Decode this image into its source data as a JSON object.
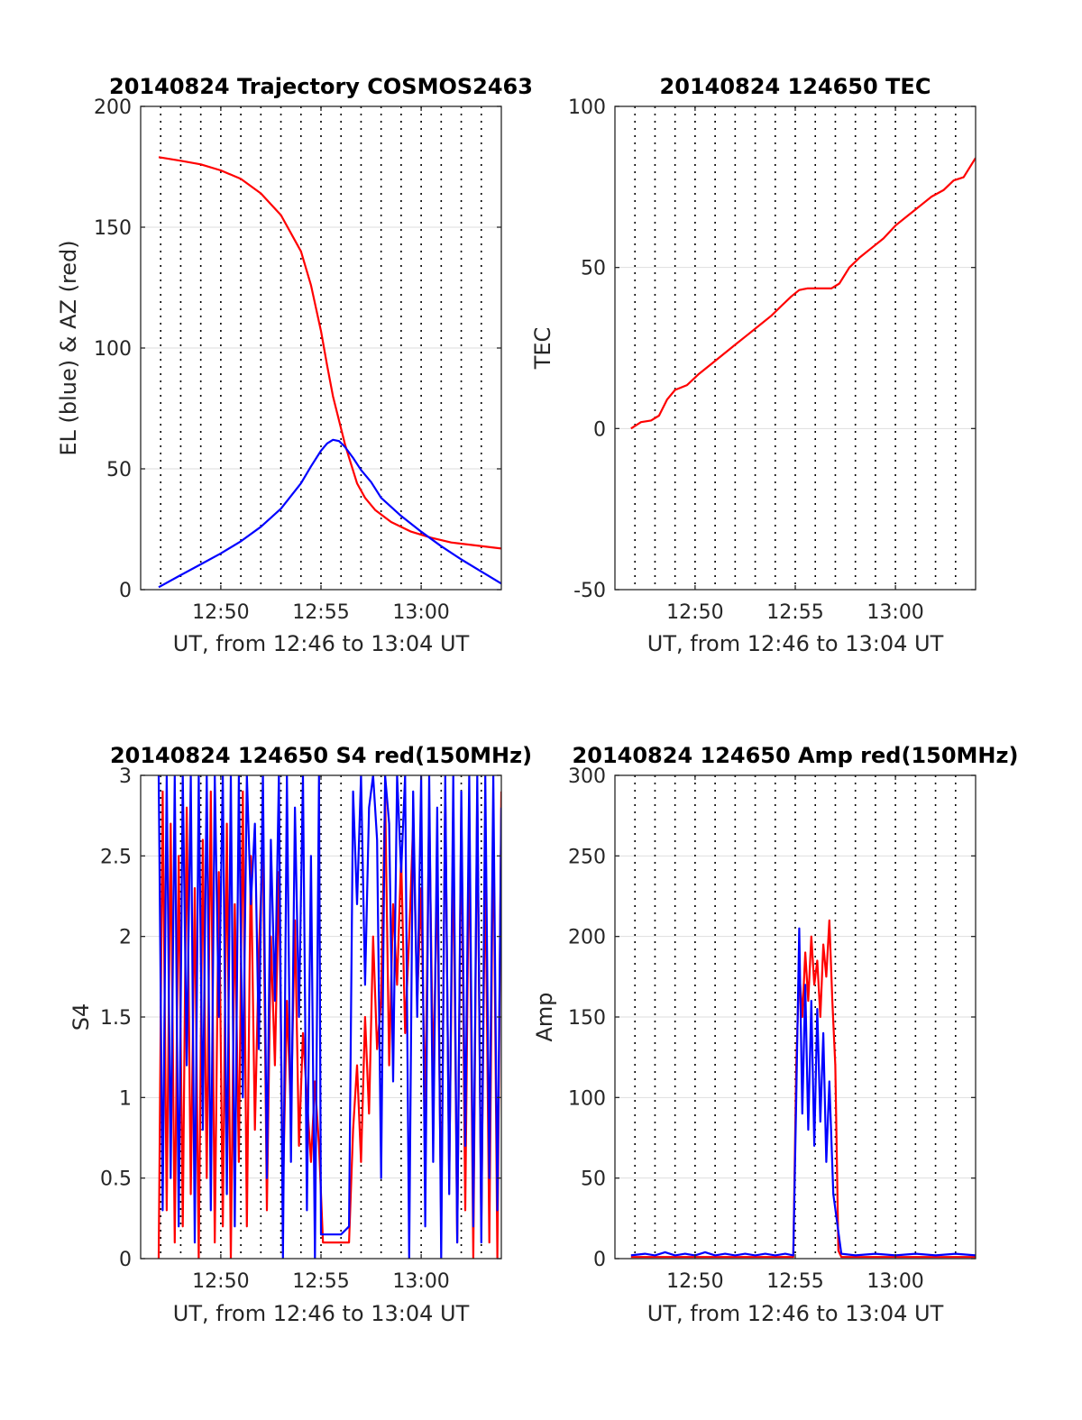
{
  "chart_data": [
    {
      "type": "line",
      "title": "20140824 Trajectory COSMOS2463",
      "xlabel": "UT, from 12:46 to 13:04 UT",
      "ylabel": "EL (blue) & AZ (red)",
      "xlim": [
        766,
        784
      ],
      "ylim": [
        0,
        200
      ],
      "xticks": [
        770,
        775,
        780
      ],
      "xtick_labels": [
        "12:50",
        "12:55",
        "13:00"
      ],
      "yticks": [
        0,
        50,
        100,
        150,
        200
      ],
      "ytick_labels": [
        "0",
        "50",
        "100",
        "150",
        "200"
      ],
      "grid": true,
      "series": [
        {
          "color": "#ff0000",
          "x": [
            766.9,
            768,
            769,
            770,
            771,
            772,
            773,
            774,
            774.5,
            775,
            775.3,
            775.6,
            775.9,
            776.2,
            776.5,
            776.8,
            777.2,
            777.7,
            778.5,
            779.5,
            780.5,
            781.5,
            782.5,
            784
          ],
          "values": [
            179,
            177.5,
            176,
            173.5,
            170,
            164,
            155,
            140,
            126,
            107,
            93,
            80,
            70,
            60,
            52,
            44,
            38,
            33,
            28,
            24,
            21.5,
            19.5,
            18.5,
            17
          ]
        },
        {
          "color": "#0000ff",
          "x": [
            766.9,
            768,
            769,
            770,
            771,
            772,
            773,
            774,
            774.5,
            775,
            775.3,
            775.6,
            775.9,
            776.2,
            776.6,
            777,
            777.5,
            778,
            779,
            780,
            781,
            782,
            783,
            784
          ],
          "values": [
            1,
            6,
            10.5,
            15,
            20,
            26,
            33.5,
            44,
            51,
            57.5,
            60.5,
            62,
            61.5,
            59,
            54.5,
            49.5,
            44.5,
            38,
            30.5,
            24,
            18,
            12.5,
            7.5,
            2.5
          ]
        }
      ]
    },
    {
      "type": "line",
      "title": "20140824 124650 TEC",
      "xlabel": "UT, from 12:46 to 13:04 UT",
      "ylabel": "TEC",
      "xlim": [
        766,
        784
      ],
      "ylim": [
        -50,
        100
      ],
      "xticks": [
        770,
        775,
        780
      ],
      "xtick_labels": [
        "12:50",
        "12:55",
        "13:00"
      ],
      "yticks": [
        -50,
        0,
        50,
        100
      ],
      "ytick_labels": [
        "-50",
        "0",
        "50",
        "100"
      ],
      "grid": true,
      "series": [
        {
          "color": "#ff0000",
          "x": [
            766.8,
            767.3,
            767.8,
            768.2,
            768.6,
            769,
            769.6,
            770.2,
            770.8,
            771.4,
            772,
            772.6,
            773.2,
            773.8,
            774.3,
            774.8,
            775.2,
            775.6,
            776,
            776.4,
            776.8,
            777.2,
            777.7,
            778.2,
            778.8,
            779.4,
            780,
            780.6,
            781.2,
            781.8,
            782.4,
            782.9,
            783.4,
            784
          ],
          "values": [
            0,
            2,
            2.5,
            4,
            9,
            12,
            13.5,
            17,
            20,
            23,
            26,
            29,
            32,
            35,
            38,
            41,
            43,
            43.5,
            43.5,
            43.5,
            43.5,
            45,
            50,
            53,
            56,
            59,
            63,
            66,
            69,
            72,
            74,
            77,
            78,
            84
          ]
        }
      ]
    },
    {
      "type": "line",
      "title": "20140824 124650 S4 red(150MHz)",
      "xlabel": "UT, from 12:46 to 13:04 UT",
      "ylabel": "S4",
      "xlim": [
        766,
        784
      ],
      "ylim": [
        0,
        3
      ],
      "xticks": [
        770,
        775,
        780
      ],
      "xtick_labels": [
        "12:50",
        "12:55",
        "13:00"
      ],
      "yticks": [
        0,
        0.5,
        1,
        1.5,
        2,
        2.5,
        3
      ],
      "ytick_labels": [
        "0",
        "0.5",
        "1",
        "1.5",
        "2",
        "2.5",
        "3"
      ],
      "grid": true,
      "series": [
        {
          "color": "#ff0000",
          "x": [
            766.9,
            767.1,
            767.3,
            767.5,
            767.7,
            767.9,
            768.1,
            768.3,
            768.5,
            768.7,
            768.9,
            769.1,
            769.3,
            769.5,
            769.7,
            769.9,
            770.1,
            770.3,
            770.5,
            770.7,
            770.9,
            771.1,
            771.3,
            771.5,
            771.7,
            771.9,
            772.1,
            772.3,
            772.5,
            772.7,
            772.9,
            773.1,
            773.3,
            773.5,
            773.7,
            773.9,
            774.1,
            774.3,
            774.5,
            774.7,
            774.9,
            775.1,
            775.5,
            776,
            776.4,
            776.6,
            776.8,
            777,
            777.2,
            777.4,
            777.6,
            777.8,
            778,
            778.2,
            778.4,
            778.6,
            778.8,
            779,
            779.2,
            779.4,
            779.6,
            779.8,
            780,
            780.2,
            780.4,
            780.6,
            780.8,
            781,
            781.2,
            781.4,
            781.6,
            781.8,
            782,
            782.2,
            782.4,
            782.6,
            782.8,
            783,
            783.2,
            783.4,
            783.6,
            783.8,
            784
          ],
          "values": [
            0,
            2.9,
            0.3,
            2.7,
            0.1,
            2.5,
            0.2,
            2.8,
            0.4,
            2.3,
            0,
            2.6,
            0.5,
            2.9,
            0.1,
            2.4,
            0.2,
            2.7,
            0,
            2.2,
            0.6,
            2.9,
            0.2,
            2.5,
            0.8,
            1.9,
            2.6,
            0.3,
            2.0,
            1.2,
            2.4,
            0.4,
            1.6,
            0.9,
            2.1,
            0.7,
            1.4,
            1.0,
            0.6,
            1.1,
            0.7,
            0.1,
            0.1,
            0.1,
            0.1,
            0.8,
            1.2,
            0.6,
            1.5,
            0.9,
            2.0,
            1.3,
            1.6,
            2.9,
            1.2,
            2.2,
            1.7,
            2.5,
            1.4,
            2.0,
            2.7,
            1.6,
            2.3,
            0.9,
            2.8,
            1.1,
            2.4,
            0.2,
            2.9,
            0.5,
            2.6,
            0.1,
            2.8,
            0.3,
            2.7,
            0,
            2.9,
            0.2,
            2.5,
            0.1,
            2.8,
            0,
            2.9
          ]
        },
        {
          "color": "#0000ff",
          "x": [
            766.9,
            767.1,
            767.3,
            767.5,
            767.7,
            767.9,
            768.1,
            768.3,
            768.5,
            768.7,
            768.9,
            769.1,
            769.3,
            769.5,
            769.7,
            769.9,
            770.1,
            770.3,
            770.5,
            770.7,
            770.9,
            771.1,
            771.3,
            771.5,
            771.7,
            771.9,
            772.1,
            772.3,
            772.5,
            772.7,
            772.9,
            773.1,
            773.3,
            773.5,
            773.7,
            773.9,
            774.1,
            774.3,
            774.5,
            774.7,
            774.9,
            775,
            775.5,
            776,
            776.4,
            776.6,
            776.8,
            777,
            777.2,
            777.4,
            777.6,
            777.8,
            778,
            778.2,
            778.4,
            778.6,
            778.8,
            779,
            779.2,
            779.4,
            779.6,
            779.8,
            780,
            780.2,
            780.4,
            780.6,
            780.8,
            781,
            781.2,
            781.4,
            781.6,
            781.8,
            782,
            782.2,
            782.4,
            782.6,
            782.8,
            783,
            783.2,
            783.4,
            783.6,
            783.8,
            784
          ],
          "values": [
            3,
            0.3,
            3,
            0.5,
            3,
            0.2,
            3,
            1.2,
            3,
            0.1,
            3,
            0.8,
            3,
            0.3,
            3,
            1.5,
            3,
            0.4,
            3,
            0.2,
            3,
            1.0,
            3,
            2.2,
            2.7,
            1.3,
            3,
            0.5,
            2.6,
            1.6,
            3,
            0,
            3,
            0.6,
            2.8,
            1.5,
            3,
            0.3,
            2.5,
            0,
            3,
            0.15,
            0.15,
            0.15,
            0.2,
            2.9,
            2.2,
            3,
            1.7,
            2.8,
            3,
            2.6,
            0.5,
            3,
            2.7,
            1.1,
            3,
            2.4,
            3,
            0,
            2.9,
            1.5,
            3,
            0.2,
            3,
            0.6,
            2.8,
            0,
            3,
            0.4,
            3,
            0.1,
            2.9,
            0.7,
            3,
            0.2,
            3,
            0.1,
            3,
            0.5,
            3,
            0.3,
            2.8
          ]
        }
      ]
    },
    {
      "type": "line",
      "title": "20140824 124650 Amp red(150MHz)",
      "xlabel": "UT, from 12:46 to 13:04 UT",
      "ylabel": "Amp",
      "xlim": [
        766,
        784
      ],
      "ylim": [
        0,
        300
      ],
      "xticks": [
        770,
        775,
        780
      ],
      "xtick_labels": [
        "12:50",
        "12:55",
        "13:00"
      ],
      "yticks": [
        0,
        50,
        100,
        150,
        200,
        250,
        300
      ],
      "ytick_labels": [
        "0",
        "50",
        "100",
        "150",
        "200",
        "250",
        "300"
      ],
      "grid": true,
      "series": [
        {
          "color": "#ff0000",
          "x": [
            766.8,
            770,
            774.9,
            775.05,
            775.2,
            775.35,
            775.5,
            775.65,
            775.8,
            775.95,
            776.1,
            776.25,
            776.4,
            776.55,
            776.7,
            776.85,
            777,
            777.15,
            777.3,
            780,
            784
          ],
          "values": [
            1,
            1,
            1,
            120,
            180,
            150,
            190,
            160,
            200,
            170,
            185,
            150,
            195,
            175,
            210,
            160,
            120,
            5,
            1,
            1,
            1
          ]
        },
        {
          "color": "#0000ff",
          "x": [
            766.8,
            767.5,
            768,
            768.5,
            769,
            769.5,
            770,
            770.5,
            771,
            771.5,
            772,
            772.5,
            773,
            773.5,
            774,
            774.5,
            774.9,
            775.05,
            775.2,
            775.35,
            775.5,
            775.65,
            775.8,
            775.95,
            776.1,
            776.25,
            776.4,
            776.55,
            776.7,
            776.9,
            777.3,
            778,
            779,
            780,
            781,
            782,
            783,
            784
          ],
          "values": [
            2,
            3,
            2,
            4,
            2,
            3,
            2,
            4,
            2,
            3,
            2,
            3,
            2,
            3,
            2,
            3,
            2,
            100,
            205,
            90,
            170,
            80,
            160,
            70,
            155,
            85,
            140,
            60,
            110,
            40,
            3,
            2,
            3,
            2,
            3,
            2,
            3,
            2
          ]
        }
      ]
    }
  ]
}
